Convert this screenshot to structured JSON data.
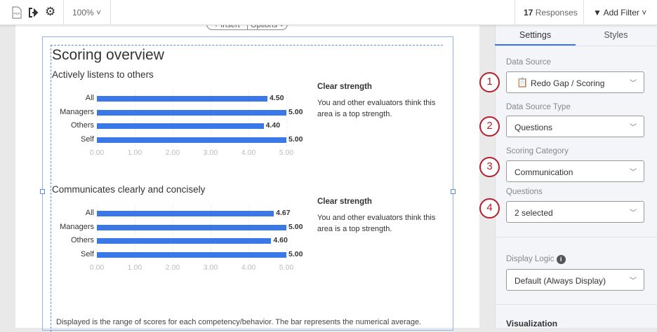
{
  "toolbar": {
    "zoom": "100%",
    "responses_count": "17",
    "responses_label": "Responses",
    "add_filter": "Add Filter",
    "icons": [
      "pdf-icon",
      "export-icon",
      "gear-icon"
    ]
  },
  "widget_menu": {
    "insert": "+ Insert",
    "options": "Options ˅"
  },
  "report": {
    "title": "Scoring overview",
    "footer": "Displayed is the range of scores for each competency/behavior. The bar represents the numerical average."
  },
  "chart_data": [
    {
      "type": "bar",
      "orientation": "horizontal",
      "title": "Actively listens to others",
      "categories": [
        "All",
        "Managers",
        "Others",
        "Self"
      ],
      "values": [
        4.5,
        5.0,
        4.4,
        5.0
      ],
      "value_labels": [
        "4.50",
        "5.00",
        "4.40",
        "5.00"
      ],
      "xlim": [
        0,
        5
      ],
      "ticks": [
        "0.00",
        "1.00",
        "2.00",
        "3.00",
        "4.00",
        "5.00"
      ],
      "color": "#3b78e7",
      "grid": true,
      "insight": {
        "heading": "Clear strength",
        "text": "You and other evaluators think this area is a top strength."
      }
    },
    {
      "type": "bar",
      "orientation": "horizontal",
      "title": "Communicates clearly and concisely",
      "categories": [
        "All",
        "Managers",
        "Others",
        "Self"
      ],
      "values": [
        4.67,
        5.0,
        4.6,
        5.0
      ],
      "value_labels": [
        "4.67",
        "5.00",
        "4.60",
        "5.00"
      ],
      "xlim": [
        0,
        5
      ],
      "ticks": [
        "0.00",
        "1.00",
        "2.00",
        "3.00",
        "4.00",
        "5.00"
      ],
      "color": "#3b78e7",
      "grid": true,
      "insight": {
        "heading": "Clear strength",
        "text": "You and other evaluators think this area is a top strength."
      }
    }
  ],
  "panel": {
    "tabs": [
      "Settings",
      "Styles"
    ],
    "active_tab": "Settings",
    "fields": [
      {
        "badge": "1",
        "label": "Data Source",
        "value": "Redo Gap / Scoring",
        "icon": "clipboard-icon"
      },
      {
        "badge": "2",
        "label": "Data Source Type",
        "value": "Questions"
      },
      {
        "badge": "3",
        "label": "Scoring Category",
        "value": "Communication"
      },
      {
        "badge": "4",
        "label": "Questions",
        "value": "2 selected"
      }
    ],
    "display_logic": {
      "label": "Display Logic",
      "value": "Default (Always Display)"
    },
    "visualization": "Visualization",
    "badge_color": "#b3202c"
  }
}
